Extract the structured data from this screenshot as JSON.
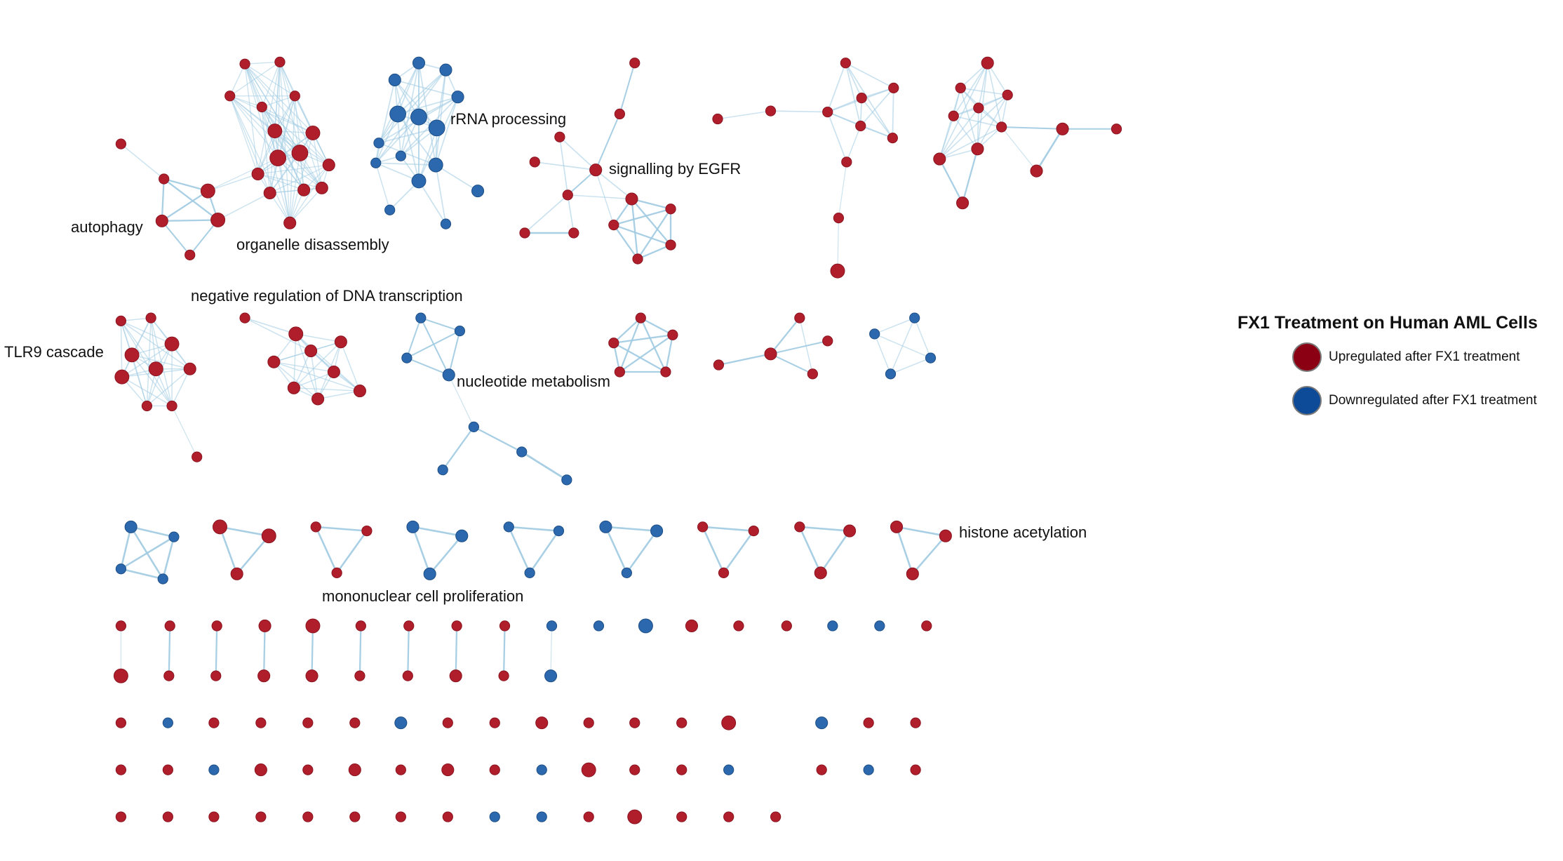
{
  "colors": {
    "up": "#b01e2c",
    "down": "#2b68ad",
    "edge": "#9ecae1",
    "legend_up": "#8c0014",
    "legend_down": "#0d4a97"
  },
  "legend": {
    "title": "FX1 Treatment on Human AML Cells",
    "up_label": "Upregulated after FX1 treatment",
    "down_label": "Downregulated after FX1 treatment",
    "up_icon": "red-node-icon",
    "down_icon": "blue-node-icon"
  },
  "labels": {
    "autophagy": "autophagy",
    "organelle": "organelle disassembly",
    "rrna": "rRNA processing",
    "egfr": "signalling by EGFR",
    "negreg": "negative regulation of DNA transcription",
    "tlr9": "TLR9 cascade",
    "nucleotide": "nucleotide metabolism",
    "histone": "histone acetylation",
    "mononuclear": "mononuclear cell proliferation"
  }
}
